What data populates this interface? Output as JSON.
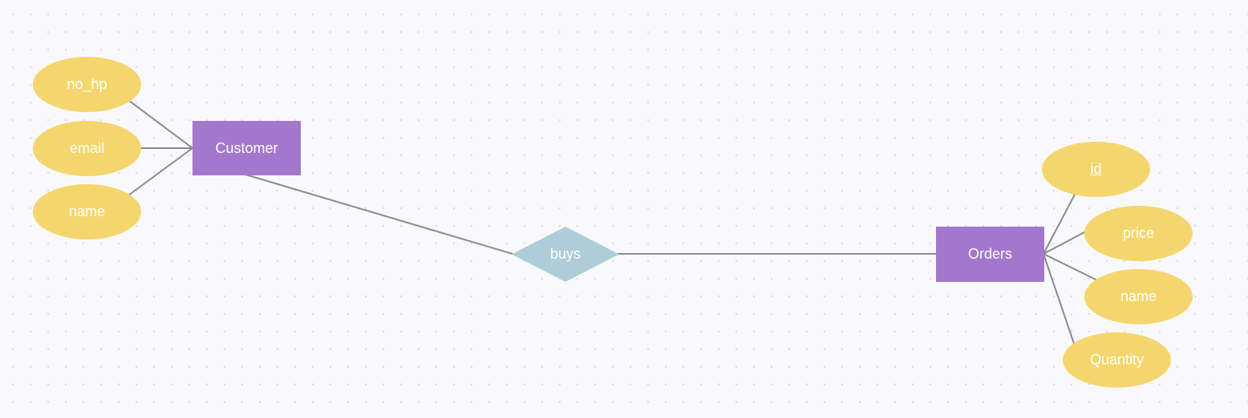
{
  "diagram": {
    "colors": {
      "background": "#f9f9fb",
      "entity": "#a277cc",
      "attribute": "#f5d66e",
      "relationship": "#aecdd8",
      "connector": "#8a8a8e",
      "text": "#ffffff"
    },
    "entities": {
      "customer": {
        "label": "Customer"
      },
      "orders": {
        "label": "Orders"
      }
    },
    "relationships": {
      "buys": {
        "label": "buys"
      }
    },
    "attributes": {
      "customer": {
        "no_hp": "no_hp",
        "email": "email",
        "name": "name"
      },
      "orders": {
        "id": "id",
        "price": "price",
        "name": "name",
        "quantity": "Quantity"
      }
    }
  }
}
